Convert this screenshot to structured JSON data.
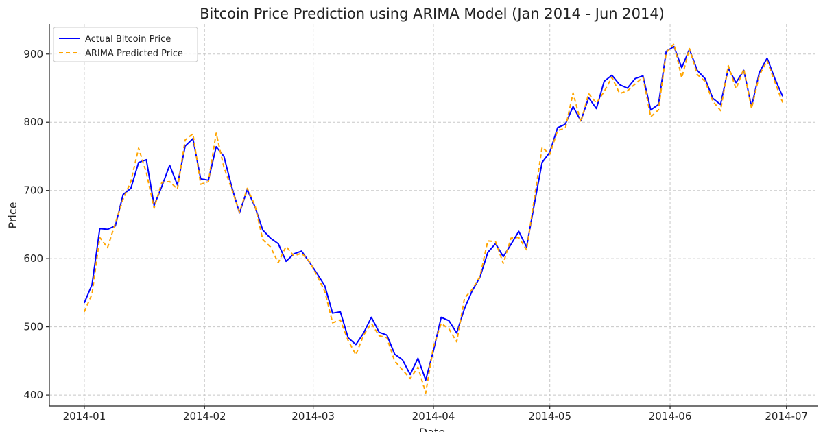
{
  "chart_data": {
    "type": "line",
    "title": "Bitcoin Price Prediction using ARIMA Model (Jan 2014 - Jun 2014)",
    "xlabel": "Date",
    "ylabel": "Price",
    "x_tick_labels": [
      "2014-01",
      "2014-02",
      "2014-03",
      "2014-04",
      "2014-05",
      "2014-06",
      "2014-07"
    ],
    "x_tick_dates": [
      "2014-01-01",
      "2014-02-01",
      "2014-03-01",
      "2014-04-01",
      "2014-05-01",
      "2014-06-01",
      "2014-07-01"
    ],
    "y_ticks": [
      400,
      500,
      600,
      700,
      800,
      900
    ],
    "xlim": [
      "2013-12-23",
      "2014-07-09"
    ],
    "ylim": [
      384,
      944
    ],
    "grid": true,
    "legend_position": "top-left",
    "x_dates": [
      "2014-01-01",
      "2014-01-03",
      "2014-01-05",
      "2014-01-07",
      "2014-01-09",
      "2014-01-11",
      "2014-01-13",
      "2014-01-15",
      "2014-01-17",
      "2014-01-19",
      "2014-01-21",
      "2014-01-23",
      "2014-01-25",
      "2014-01-27",
      "2014-01-29",
      "2014-01-31",
      "2014-02-02",
      "2014-02-04",
      "2014-02-06",
      "2014-02-08",
      "2014-02-10",
      "2014-02-12",
      "2014-02-14",
      "2014-02-16",
      "2014-02-18",
      "2014-02-20",
      "2014-02-22",
      "2014-02-24",
      "2014-02-26",
      "2014-02-28",
      "2014-03-02",
      "2014-03-04",
      "2014-03-06",
      "2014-03-08",
      "2014-03-10",
      "2014-03-12",
      "2014-03-14",
      "2014-03-16",
      "2014-03-18",
      "2014-03-20",
      "2014-03-22",
      "2014-03-24",
      "2014-03-26",
      "2014-03-28",
      "2014-03-30",
      "2014-04-01",
      "2014-04-03",
      "2014-04-05",
      "2014-04-07",
      "2014-04-09",
      "2014-04-11",
      "2014-04-13",
      "2014-04-15",
      "2014-04-17",
      "2014-04-19",
      "2014-04-21",
      "2014-04-23",
      "2014-04-25",
      "2014-04-27",
      "2014-04-29",
      "2014-05-01",
      "2014-05-03",
      "2014-05-05",
      "2014-05-07",
      "2014-05-09",
      "2014-05-11",
      "2014-05-13",
      "2014-05-15",
      "2014-05-17",
      "2014-05-19",
      "2014-05-21",
      "2014-05-23",
      "2014-05-25",
      "2014-05-27",
      "2014-05-29",
      "2014-05-31",
      "2014-06-02",
      "2014-06-04",
      "2014-06-06",
      "2014-06-08",
      "2014-06-10",
      "2014-06-12",
      "2014-06-14",
      "2014-06-16",
      "2014-06-18",
      "2014-06-20",
      "2014-06-22",
      "2014-06-24",
      "2014-06-26",
      "2014-06-28",
      "2014-06-30"
    ],
    "series": [
      {
        "name": "Actual Bitcoin Price",
        "color": "#0000ff",
        "style": "solid",
        "values": [
          535,
          562,
          644,
          643,
          648,
          694,
          703,
          741,
          745,
          678,
          706,
          737,
          708,
          765,
          776,
          717,
          715,
          764,
          750,
          705,
          667,
          701,
          676,
          642,
          630,
          622,
          596,
          607,
          611,
          595,
          578,
          560,
          520,
          522,
          484,
          474,
          491,
          514,
          492,
          488,
          460,
          452,
          430,
          454,
          422,
          465,
          514,
          509,
          491,
          527,
          553,
          573,
          609,
          622,
          603,
          621,
          640,
          617,
          680,
          741,
          756,
          792,
          797,
          823,
          802,
          836,
          820,
          860,
          869,
          855,
          850,
          864,
          868,
          818,
          826,
          904,
          911,
          880,
          907,
          876,
          864,
          835,
          826,
          879,
          858,
          876,
          823,
          873,
          894,
          864,
          838
        ]
      },
      {
        "name": "ARIMA Predicted Price",
        "color": "#ffa500",
        "style": "dashed",
        "values": [
          522,
          548,
          631,
          616,
          652,
          687,
          713,
          762,
          726,
          674,
          712,
          713,
          702,
          774,
          783,
          709,
          713,
          784,
          734,
          702,
          668,
          703,
          678,
          628,
          617,
          594,
          618,
          604,
          608,
          596,
          575,
          552,
          506,
          510,
          480,
          459,
          488,
          505,
          487,
          484,
          450,
          437,
          424,
          441,
          403,
          471,
          505,
          497,
          478,
          542,
          555,
          574,
          626,
          625,
          593,
          630,
          631,
          613,
          688,
          763,
          753,
          788,
          791,
          843,
          800,
          842,
          828,
          845,
          866,
          842,
          846,
          856,
          866,
          808,
          818,
          902,
          915,
          865,
          908,
          870,
          860,
          831,
          817,
          883,
          849,
          878,
          820,
          869,
          890,
          859,
          829
        ]
      }
    ]
  }
}
